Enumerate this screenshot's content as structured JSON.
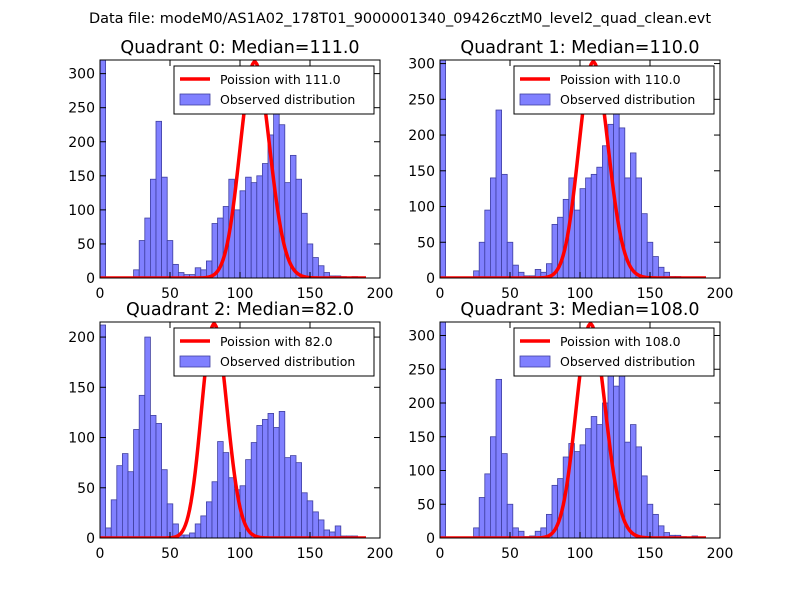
{
  "figure": {
    "suptitle": "Data file: modeM0/AS1A02_178T01_9000001340_09426cztM0_level2_quad_clean.evt",
    "colors": {
      "bar_fill": "#8080ff",
      "bar_edge": "#3f3fa0",
      "poisson_line": "#ff0000",
      "axes": "#000000"
    }
  },
  "chart_data": [
    {
      "type": "bar",
      "title": "Quadrant 0: Median=111.0",
      "xlabel": "",
      "ylabel": "",
      "xlim": [
        0,
        200
      ],
      "ylim": [
        0,
        320
      ],
      "xticks": [
        0,
        50,
        100,
        150,
        200
      ],
      "yticks": [
        0,
        50,
        100,
        150,
        200,
        250,
        300
      ],
      "bin_width": 4,
      "bin_starts": [
        0,
        4,
        8,
        12,
        16,
        20,
        24,
        28,
        32,
        36,
        40,
        44,
        48,
        52,
        56,
        60,
        64,
        68,
        72,
        76,
        80,
        84,
        88,
        92,
        96,
        100,
        104,
        108,
        112,
        116,
        120,
        124,
        128,
        132,
        136,
        140,
        144,
        148,
        152,
        156,
        160,
        164,
        168,
        172,
        176,
        180,
        184,
        188,
        192,
        196
      ],
      "values": [
        320,
        0,
        0,
        0,
        0,
        0,
        12,
        55,
        88,
        145,
        230,
        148,
        55,
        20,
        8,
        5,
        5,
        15,
        12,
        25,
        80,
        88,
        105,
        145,
        100,
        128,
        148,
        140,
        150,
        168,
        210,
        245,
        225,
        140,
        180,
        145,
        95,
        50,
        30,
        18,
        8,
        3,
        3,
        2,
        1,
        2,
        0,
        0,
        0,
        0
      ],
      "series": [
        {
          "name": "Observed distribution",
          "kind": "histogram"
        },
        {
          "name": "Poission with 111.0",
          "kind": "line",
          "mean": 111.0
        }
      ],
      "legend": [
        "Poission with 111.0",
        "Observed distribution"
      ],
      "legend_position": "top-right"
    },
    {
      "type": "bar",
      "title": "Quadrant 1: Median=110.0",
      "xlabel": "",
      "ylabel": "",
      "xlim": [
        0,
        200
      ],
      "ylim": [
        0,
        305
      ],
      "xticks": [
        0,
        50,
        100,
        150,
        200
      ],
      "yticks": [
        0,
        50,
        100,
        150,
        200,
        250,
        300
      ],
      "bin_width": 4,
      "bin_starts": [
        0,
        4,
        8,
        12,
        16,
        20,
        24,
        28,
        32,
        36,
        40,
        44,
        48,
        52,
        56,
        60,
        64,
        68,
        72,
        76,
        80,
        84,
        88,
        92,
        96,
        100,
        104,
        108,
        112,
        116,
        120,
        124,
        128,
        132,
        136,
        140,
        144,
        148,
        152,
        156,
        160,
        164,
        168,
        172,
        176,
        180,
        184,
        188,
        192,
        196
      ],
      "values": [
        305,
        0,
        0,
        0,
        0,
        0,
        10,
        50,
        95,
        140,
        235,
        145,
        50,
        18,
        8,
        3,
        3,
        12,
        8,
        20,
        75,
        85,
        110,
        140,
        95,
        125,
        140,
        145,
        155,
        185,
        215,
        255,
        210,
        140,
        175,
        140,
        90,
        50,
        30,
        15,
        8,
        2,
        2,
        1,
        1,
        1,
        0,
        0,
        0,
        0
      ],
      "series": [
        {
          "name": "Observed distribution",
          "kind": "histogram"
        },
        {
          "name": "Poission with 110.0",
          "kind": "line",
          "mean": 110.0
        }
      ],
      "legend": [
        "Poission with 110.0",
        "Observed distribution"
      ],
      "legend_position": "top-right"
    },
    {
      "type": "bar",
      "title": "Quadrant 2: Median=82.0",
      "xlabel": "",
      "ylabel": "",
      "xlim": [
        0,
        200
      ],
      "ylim": [
        0,
        215
      ],
      "xticks": [
        0,
        50,
        100,
        150,
        200
      ],
      "yticks": [
        0,
        50,
        100,
        150,
        200
      ],
      "bin_width": 4,
      "bin_starts": [
        0,
        4,
        8,
        12,
        16,
        20,
        24,
        28,
        32,
        36,
        40,
        44,
        48,
        52,
        56,
        60,
        64,
        68,
        72,
        76,
        80,
        84,
        88,
        92,
        96,
        100,
        104,
        108,
        112,
        116,
        120,
        124,
        128,
        132,
        136,
        140,
        144,
        148,
        152,
        156,
        160,
        164,
        168,
        172,
        176,
        180,
        184,
        188,
        192,
        196
      ],
      "values": [
        212,
        10,
        38,
        72,
        84,
        66,
        108,
        142,
        200,
        122,
        114,
        68,
        34,
        14,
        3,
        3,
        5,
        14,
        22,
        36,
        56,
        96,
        85,
        60,
        48,
        52,
        78,
        95,
        112,
        118,
        124,
        110,
        126,
        80,
        82,
        75,
        45,
        37,
        26,
        18,
        8,
        6,
        12,
        2,
        2,
        2,
        0,
        0,
        0,
        0
      ],
      "series": [
        {
          "name": "Observed distribution",
          "kind": "histogram"
        },
        {
          "name": "Poission with 82.0",
          "kind": "line",
          "mean": 82.0
        }
      ],
      "legend": [
        "Poission with 82.0",
        "Observed distribution"
      ],
      "legend_position": "top-right"
    },
    {
      "type": "bar",
      "title": "Quadrant 3: Median=108.0",
      "xlabel": "",
      "ylabel": "",
      "xlim": [
        0,
        200
      ],
      "ylim": [
        0,
        320
      ],
      "xticks": [
        0,
        50,
        100,
        150,
        200
      ],
      "yticks": [
        0,
        50,
        100,
        150,
        200,
        250,
        300
      ],
      "bin_width": 4,
      "bin_starts": [
        0,
        4,
        8,
        12,
        16,
        20,
        24,
        28,
        32,
        36,
        40,
        44,
        48,
        52,
        56,
        60,
        64,
        68,
        72,
        76,
        80,
        84,
        88,
        92,
        96,
        100,
        104,
        108,
        112,
        116,
        120,
        124,
        128,
        132,
        136,
        140,
        144,
        148,
        152,
        156,
        160,
        164,
        168,
        172,
        176,
        180,
        184,
        188,
        192,
        196
      ],
      "values": [
        320,
        0,
        0,
        0,
        0,
        0,
        15,
        60,
        95,
        150,
        235,
        125,
        50,
        15,
        10,
        2,
        3,
        10,
        15,
        35,
        78,
        88,
        120,
        140,
        128,
        138,
        162,
        180,
        168,
        200,
        255,
        225,
        240,
        142,
        168,
        135,
        92,
        50,
        35,
        18,
        8,
        4,
        4,
        2,
        1,
        3,
        0,
        0,
        0,
        0
      ],
      "series": [
        {
          "name": "Observed distribution",
          "kind": "histogram"
        },
        {
          "name": "Poission with 108.0",
          "kind": "line",
          "mean": 108.0
        }
      ],
      "legend": [
        "Poission with 108.0",
        "Observed distribution"
      ],
      "legend_position": "top-right"
    }
  ]
}
